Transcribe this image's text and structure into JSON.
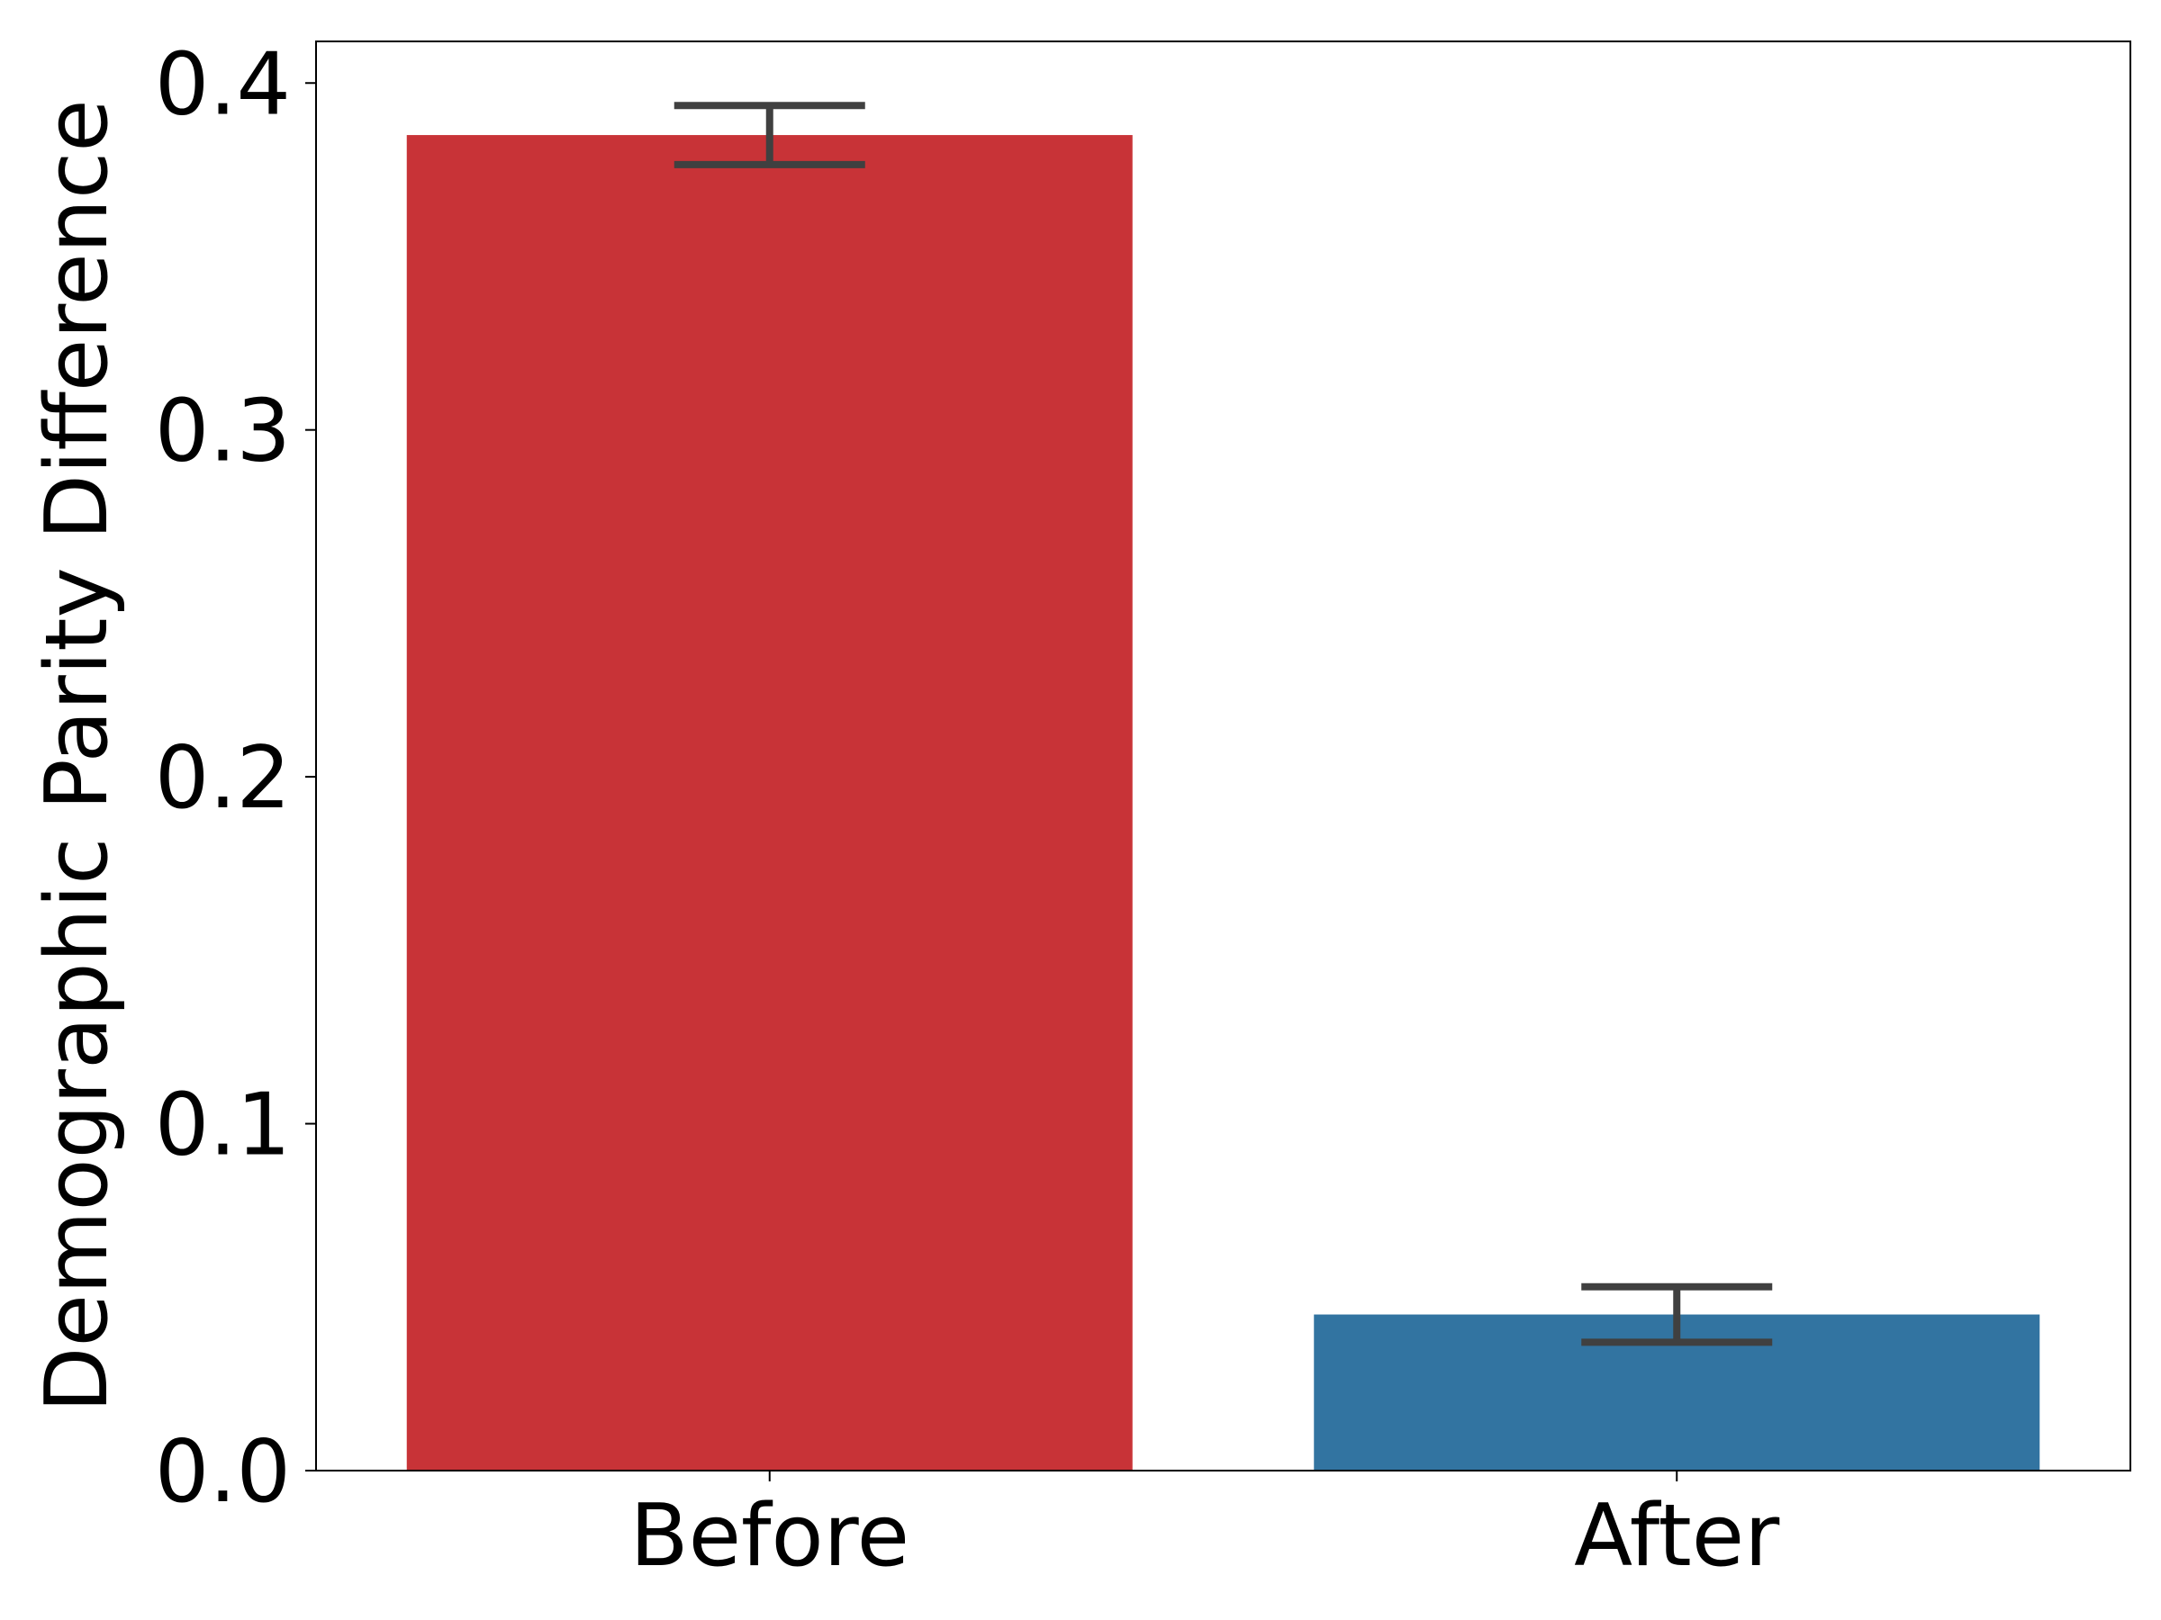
{
  "chart_data": {
    "type": "bar",
    "y_label": "Demographic Parity Difference",
    "categories": [
      "Before",
      "After"
    ],
    "values": [
      0.385,
      0.045
    ],
    "errors": [
      0.0085,
      0.008
    ],
    "colors": [
      "#c83337",
      "#3274a1"
    ],
    "error_color": "#404040",
    "ylim": [
      0,
      0.412
    ],
    "yticks": [
      {
        "value": 0,
        "label": "0.0"
      },
      0.1,
      0.2,
      0.3,
      0.4
    ]
  }
}
